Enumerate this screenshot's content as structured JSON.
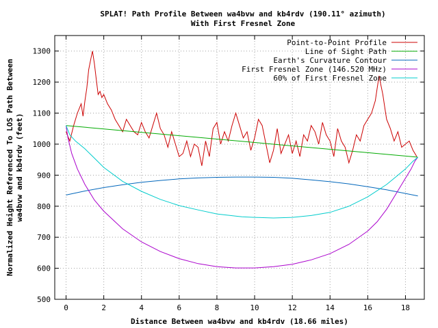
{
  "chart_data": {
    "type": "line",
    "title_line1": "SPLAT! Path Profile Between wa4bvw and kb4rdv (190.11° azimuth)",
    "title_line2": "With First Fresnel Zone",
    "xlabel": "Distance Between wa4bvw and kb4rdv (18.66 miles)",
    "ylabel_line1": "Normalized Height Referenced To LOS Path Between",
    "ylabel_line2": "wa4bvw and kb4rdv (feet)",
    "xlim": [
      -0.6,
      19.0
    ],
    "ylim": [
      500,
      1350
    ],
    "x_ticks": [
      0,
      2,
      4,
      6,
      8,
      10,
      12,
      14,
      16,
      18
    ],
    "y_ticks": [
      500,
      600,
      700,
      800,
      900,
      1000,
      1100,
      1200,
      1300
    ],
    "grid": true,
    "legend_position": "top-right",
    "series": [
      {
        "name": "Point-to-Point Profile",
        "color": "#cc0000",
        "x": [
          0,
          0.2,
          0.4,
          0.6,
          0.8,
          0.9,
          1.0,
          1.1,
          1.2,
          1.3,
          1.4,
          1.5,
          1.6,
          1.7,
          1.8,
          1.9,
          2.0,
          2.2,
          2.4,
          2.6,
          2.8,
          3.0,
          3.2,
          3.4,
          3.6,
          3.8,
          4.0,
          4.2,
          4.4,
          4.6,
          4.8,
          5.0,
          5.2,
          5.4,
          5.6,
          5.8,
          6.0,
          6.2,
          6.4,
          6.6,
          6.8,
          7.0,
          7.2,
          7.4,
          7.6,
          7.8,
          8.0,
          8.2,
          8.4,
          8.6,
          8.8,
          9.0,
          9.2,
          9.4,
          9.6,
          9.8,
          10.0,
          10.2,
          10.4,
          10.6,
          10.8,
          11.0,
          11.2,
          11.4,
          11.6,
          11.8,
          12.0,
          12.2,
          12.4,
          12.6,
          12.8,
          13.0,
          13.2,
          13.4,
          13.6,
          13.8,
          14.0,
          14.2,
          14.4,
          14.6,
          14.8,
          15.0,
          15.2,
          15.4,
          15.6,
          15.8,
          16.0,
          16.2,
          16.4,
          16.5,
          16.6,
          16.7,
          16.8,
          16.9,
          17.0,
          17.2,
          17.4,
          17.6,
          17.8,
          18.0,
          18.2,
          18.4,
          18.6
        ],
        "y": [
          1040,
          1010,
          1060,
          1100,
          1130,
          1090,
          1140,
          1180,
          1240,
          1270,
          1300,
          1260,
          1210,
          1160,
          1170,
          1150,
          1160,
          1130,
          1110,
          1080,
          1060,
          1040,
          1080,
          1060,
          1040,
          1030,
          1070,
          1040,
          1020,
          1060,
          1100,
          1050,
          1030,
          990,
          1040,
          1000,
          960,
          970,
          1010,
          960,
          1000,
          990,
          930,
          1010,
          960,
          1050,
          1070,
          1000,
          1040,
          1010,
          1060,
          1100,
          1060,
          1020,
          1040,
          980,
          1020,
          1080,
          1060,
          1000,
          940,
          980,
          1050,
          970,
          1000,
          1030,
          970,
          1010,
          960,
          1030,
          1010,
          1060,
          1040,
          1000,
          1070,
          1030,
          1010,
          960,
          1050,
          1010,
          990,
          940,
          980,
          1030,
          1010,
          1060,
          1080,
          1100,
          1140,
          1180,
          1220,
          1190,
          1160,
          1120,
          1080,
          1050,
          1010,
          1040,
          990,
          1000,
          1010,
          980,
          960
        ]
      },
      {
        "name": "Line of Sight Path",
        "color": "#00aa00",
        "x": [
          0,
          18.66
        ],
        "y": [
          1060,
          958
        ]
      },
      {
        "name": "Earth's Curvature Contour",
        "color": "#0066bb",
        "x": [
          0,
          1,
          2,
          3,
          4,
          5,
          6,
          7,
          8,
          9,
          9.33,
          10,
          11,
          12,
          13,
          14,
          15,
          16,
          17,
          18,
          18.66
        ],
        "y": [
          836,
          849,
          860,
          869,
          877,
          883,
          888,
          891,
          893,
          894,
          894,
          894,
          893,
          890,
          885,
          879,
          872,
          863,
          853,
          841,
          833
        ]
      },
      {
        "name": "First Fresnel Zone (146.520 MHz)",
        "color": "#aa00cc",
        "x": [
          0,
          0.1,
          0.3,
          0.6,
          1,
          1.5,
          2,
          3,
          4,
          5,
          6,
          7,
          8,
          9,
          9.33,
          10,
          11,
          12,
          13,
          14,
          15,
          16,
          16.5,
          17,
          17.5,
          18,
          18.3,
          18.5,
          18.66
        ],
        "y": [
          1060,
          1020,
          970,
          920,
          870,
          820,
          784,
          727,
          685,
          654,
          631,
          615,
          605,
          601,
          601,
          601,
          605,
          613,
          627,
          647,
          677,
          720,
          750,
          790,
          840,
          890,
          920,
          945,
          958
        ]
      },
      {
        "name": "60% of First Fresnel Zone",
        "color": "#00cccc",
        "x": [
          0,
          0.2,
          0.5,
          1,
          1.5,
          2,
          3,
          4,
          5,
          6,
          7,
          8,
          9,
          9.33,
          10,
          11,
          12,
          13,
          14,
          15,
          16,
          17,
          17.5,
          18,
          18.4,
          18.66
        ],
        "y": [
          1060,
          1030,
          1010,
          985,
          955,
          925,
          880,
          848,
          822,
          802,
          788,
          775,
          768,
          766,
          764,
          762,
          764,
          770,
          780,
          800,
          830,
          870,
          895,
          920,
          945,
          958
        ]
      }
    ]
  }
}
